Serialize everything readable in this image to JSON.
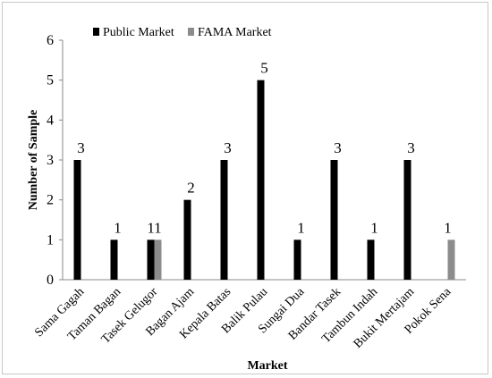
{
  "chart_data": {
    "type": "bar",
    "title": "",
    "xlabel": "Market",
    "ylabel": "Number of Sample",
    "ylim": [
      0,
      6
    ],
    "yticks": [
      "0",
      "1",
      "2",
      "3",
      "4",
      "5",
      "6"
    ],
    "grid": false,
    "legend_position": "top",
    "categories": [
      "Sama Gagah",
      "Taman Bagan",
      "Tasek Gelugor",
      "Bagan Ajam",
      "Kepala Batas",
      "Balik Pulau",
      "Sungai Dua",
      "Bandar Tasek",
      "Tambun Indah",
      "Bukit Mertajam",
      "Pokok Sena"
    ],
    "series": [
      {
        "name": "Public Market",
        "color": "#000000",
        "values": [
          3,
          1,
          1,
          2,
          3,
          5,
          1,
          3,
          1,
          3,
          0
        ]
      },
      {
        "name": "FAMA Market",
        "color": "#8c8c8c",
        "values": [
          0,
          0,
          1,
          0,
          0,
          0,
          0,
          0,
          0,
          0,
          1
        ]
      }
    ],
    "data_labels": [
      {
        "category": "Sama Gagah",
        "text": "3"
      },
      {
        "category": "Taman Bagan",
        "text": "1"
      },
      {
        "category": "Tasek Gelugor",
        "text": "11"
      },
      {
        "category": "Bagan Ajam",
        "text": "2"
      },
      {
        "category": "Kepala Batas",
        "text": "3"
      },
      {
        "category": "Balik Pulau",
        "text": "5"
      },
      {
        "category": "Sungai Dua",
        "text": "1"
      },
      {
        "category": "Bandar Tasek",
        "text": "3"
      },
      {
        "category": "Tambun Indah",
        "text": "1"
      },
      {
        "category": "Bukit Mertajam",
        "text": "3"
      },
      {
        "category": "Pokok Sena",
        "text": "1"
      }
    ]
  }
}
